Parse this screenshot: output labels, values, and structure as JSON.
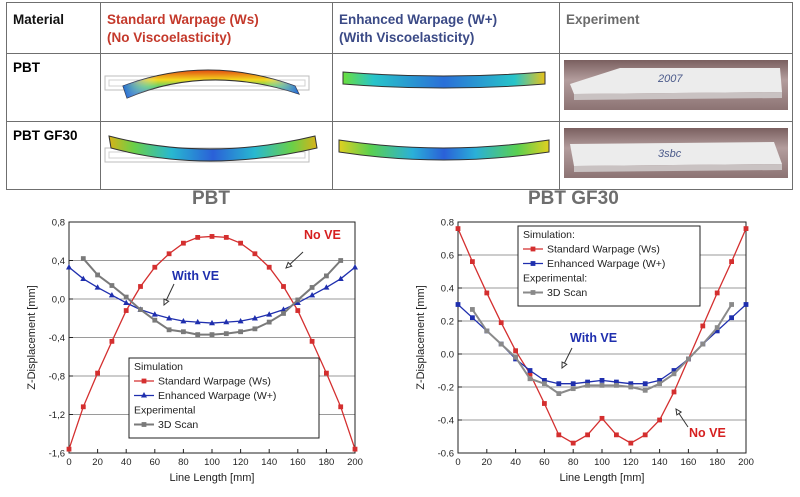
{
  "table": {
    "headers": {
      "material": "Material",
      "ws_line1": "Standard Warpage (Ws)",
      "ws_line2": "(No Viscoelasticity)",
      "wp_line1": "Enhanced Warpage (W+)",
      "wp_line2": "(With Viscoelasticity)",
      "experiment": "Experiment"
    },
    "rows": [
      {
        "material": "PBT",
        "specimen_text": "2007"
      },
      {
        "material": "PBT GF30",
        "specimen_text": "3sbc"
      }
    ],
    "colors": {
      "ws": "#c4392b",
      "wp": "#3b4a86",
      "experiment": "#6b6b6b"
    }
  },
  "chart_data": [
    {
      "type": "line",
      "title": "PBT",
      "xlabel": "Line Length [mm]",
      "ylabel": "Z-Displacement [mm]",
      "xlim": [
        0,
        200
      ],
      "ylim": [
        -1.6,
        0.8
      ],
      "xticks": [
        "0",
        "20",
        "40",
        "60",
        "80",
        "100",
        "120",
        "140",
        "160",
        "180",
        "200"
      ],
      "yticks": [
        "-1,6",
        "-1,2",
        "-0,8",
        "-0,4",
        "0,0",
        "0,4",
        "0,8"
      ],
      "grid": "horizontal",
      "legend": {
        "position": "bottom-center",
        "header1": "Simulation",
        "header2": "Experimental",
        "items": [
          "Standard Warpage (Ws)",
          "Enhanced Warpage (W+)",
          "3D Scan"
        ]
      },
      "annotations": [
        {
          "text": "No VE",
          "color": "#d62020"
        },
        {
          "text": "With VE",
          "color": "#1f2fae"
        }
      ],
      "series": [
        {
          "name": "Standard Warpage (Ws)",
          "color": "#d42f2f",
          "marker": "square",
          "x": [
            0,
            10,
            20,
            30,
            40,
            50,
            60,
            70,
            80,
            90,
            100,
            110,
            120,
            130,
            140,
            150,
            160,
            170,
            180,
            190,
            200
          ],
          "y": [
            -1.56,
            -1.12,
            -0.77,
            -0.44,
            -0.12,
            0.13,
            0.33,
            0.47,
            0.58,
            0.64,
            0.65,
            0.64,
            0.58,
            0.47,
            0.33,
            0.13,
            -0.12,
            -0.44,
            -0.77,
            -1.12,
            -1.56
          ]
        },
        {
          "name": "Enhanced Warpage (W+)",
          "color": "#1f2fae",
          "marker": "triangle",
          "x": [
            0,
            10,
            20,
            30,
            40,
            50,
            60,
            70,
            80,
            90,
            100,
            110,
            120,
            130,
            140,
            150,
            160,
            170,
            180,
            190,
            200
          ],
          "y": [
            0.33,
            0.21,
            0.12,
            0.04,
            -0.04,
            -0.11,
            -0.16,
            -0.2,
            -0.23,
            -0.24,
            -0.25,
            -0.24,
            -0.23,
            -0.2,
            -0.16,
            -0.11,
            -0.04,
            0.04,
            0.12,
            0.21,
            0.33
          ]
        },
        {
          "name": "3D Scan",
          "color": "#7a7a7a",
          "marker": "square",
          "x": [
            10,
            20,
            30,
            40,
            50,
            60,
            70,
            80,
            90,
            100,
            110,
            120,
            130,
            140,
            150,
            160,
            170,
            180,
            190
          ],
          "y": [
            0.42,
            0.25,
            0.14,
            0.02,
            -0.11,
            -0.22,
            -0.32,
            -0.34,
            -0.37,
            -0.37,
            -0.36,
            -0.34,
            -0.31,
            -0.24,
            -0.15,
            -0.01,
            0.12,
            0.24,
            0.4
          ]
        }
      ]
    },
    {
      "type": "line",
      "title": "PBT GF30",
      "xlabel": "Line Length [mm]",
      "ylabel": "Z-Displacement [mm]",
      "xlim": [
        0,
        200
      ],
      "ylim": [
        -0.6,
        0.8
      ],
      "xticks": [
        "0",
        "20",
        "40",
        "60",
        "80",
        "100",
        "120",
        "140",
        "160",
        "180",
        "200"
      ],
      "yticks": [
        "-0.6",
        "-0.4",
        "-0.2",
        "0.0",
        "0.2",
        "0.4",
        "0.6",
        "0.8"
      ],
      "grid": "horizontal",
      "legend": {
        "position": "top-center",
        "header1": "Simulation:",
        "header2": "Experimental:",
        "items": [
          "Standard Warpage (Ws)",
          "Enhanced Warpage (W+)",
          "3D Scan"
        ]
      },
      "annotations": [
        {
          "text": "With VE",
          "color": "#1f2fae"
        },
        {
          "text": "No VE",
          "color": "#d62020"
        }
      ],
      "series": [
        {
          "name": "Standard Warpage (Ws)",
          "color": "#d42f2f",
          "marker": "square",
          "x": [
            0,
            10,
            20,
            30,
            40,
            50,
            60,
            70,
            80,
            90,
            100,
            110,
            120,
            130,
            140,
            150,
            160,
            170,
            180,
            190,
            200
          ],
          "y": [
            0.76,
            0.56,
            0.37,
            0.19,
            0.02,
            -0.12,
            -0.3,
            -0.49,
            -0.54,
            -0.49,
            -0.39,
            -0.49,
            -0.54,
            -0.49,
            -0.4,
            -0.23,
            -0.03,
            0.17,
            0.37,
            0.56,
            0.76
          ]
        },
        {
          "name": "Enhanced Warpage (W+)",
          "color": "#1f2fae",
          "marker": "square",
          "x": [
            0,
            10,
            20,
            30,
            40,
            50,
            60,
            70,
            80,
            90,
            100,
            110,
            120,
            130,
            140,
            150,
            160,
            170,
            180,
            190,
            200
          ],
          "y": [
            0.3,
            0.22,
            0.14,
            0.06,
            -0.03,
            -0.1,
            -0.16,
            -0.18,
            -0.18,
            -0.17,
            -0.16,
            -0.17,
            -0.18,
            -0.18,
            -0.16,
            -0.1,
            -0.03,
            0.06,
            0.14,
            0.22,
            0.3
          ]
        },
        {
          "name": "3D Scan",
          "color": "#8a8a8a",
          "marker": "square",
          "x": [
            10,
            20,
            30,
            40,
            50,
            60,
            70,
            80,
            90,
            100,
            110,
            120,
            130,
            140,
            150,
            160,
            170,
            180,
            190
          ],
          "y": [
            0.27,
            0.14,
            0.06,
            -0.02,
            -0.15,
            -0.18,
            -0.24,
            -0.21,
            -0.19,
            -0.19,
            -0.19,
            -0.2,
            -0.22,
            -0.18,
            -0.12,
            -0.03,
            0.06,
            0.16,
            0.3
          ]
        }
      ]
    }
  ]
}
